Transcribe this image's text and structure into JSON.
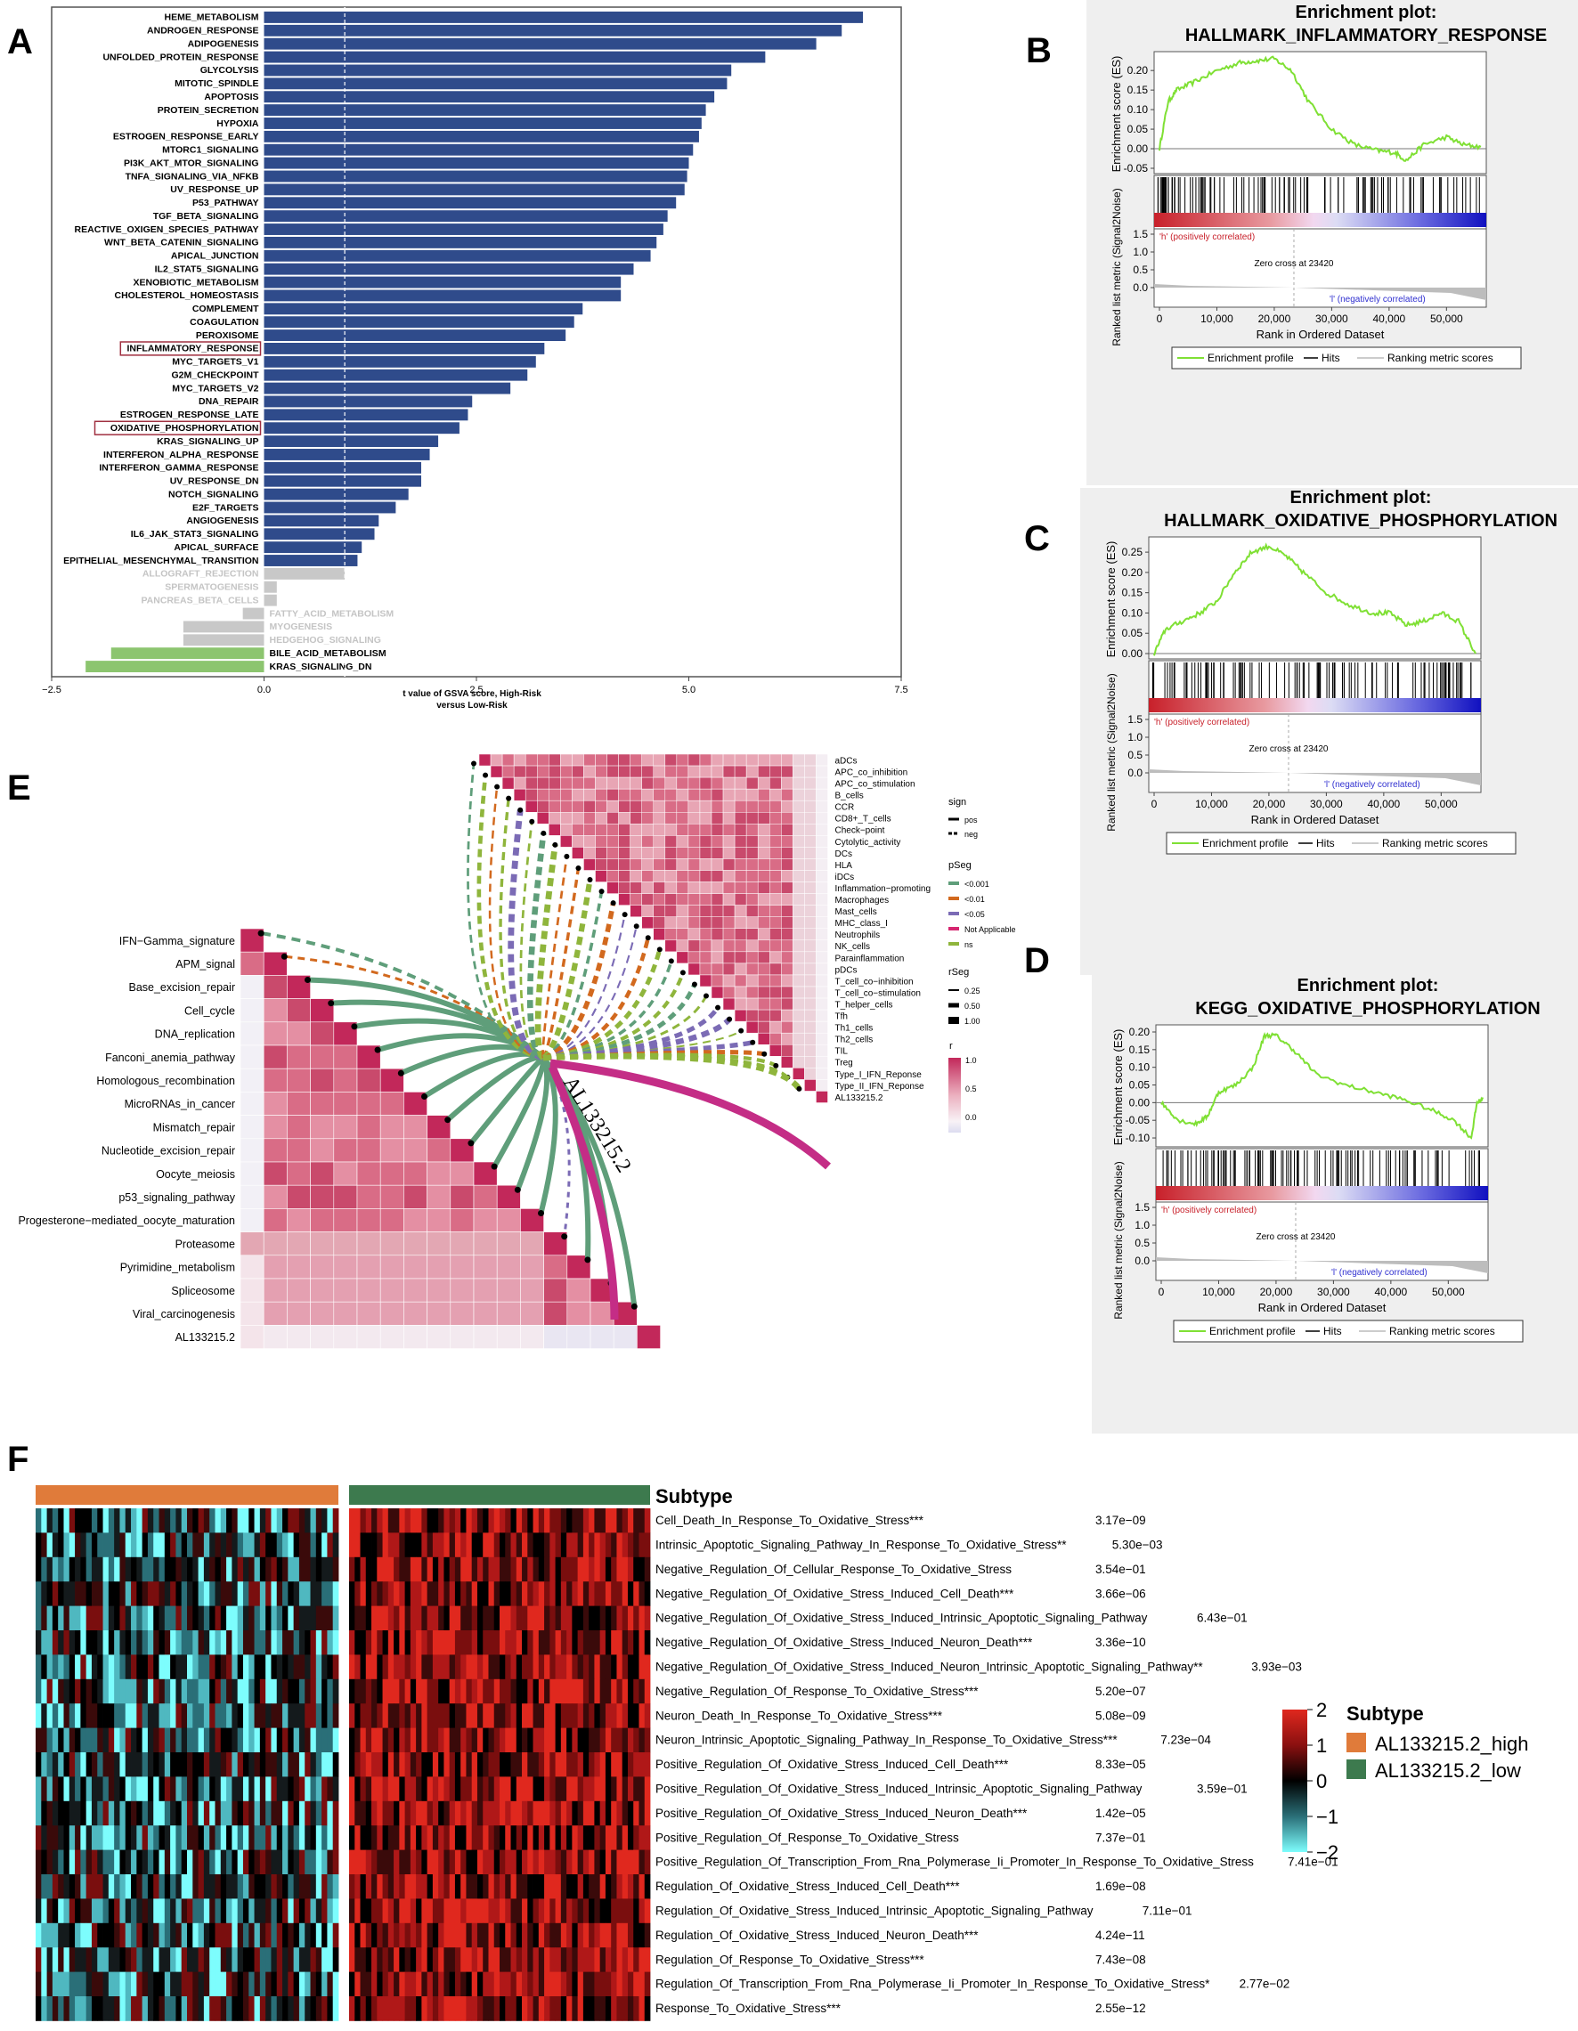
{
  "panels": {
    "A": "A",
    "B": "B",
    "C": "C",
    "D": "D",
    "E": "E",
    "F": "F"
  },
  "colors": {
    "up": "#2f4b8b",
    "ns": "#c8c8c8",
    "down": "#8cc56f",
    "es": "#7fe034",
    "hm_high": "#e07b3a",
    "hm_low": "#3d7a4e",
    "mat": "#c8466a",
    "green": "#5f9e7a",
    "magenta": "#c42d86"
  },
  "chart_data": [
    {
      "type": "bar",
      "id": "gsva",
      "xlabel": "t value of GSVA score, High-Risk versus Low-Risk",
      "xlabel_line1": "t value of GSVA score, High-Risk",
      "xlabel_line2": "versus Low-Risk",
      "xlim": [
        -2.5,
        7.5
      ],
      "xticks": [
        "−2.5",
        "0.0",
        "2.5",
        "5.0",
        "7.5"
      ],
      "xtick_values": [
        -2.5,
        0,
        2.5,
        5.0,
        7.5
      ],
      "highlighted": [
        "INFLAMMATORY_RESPONSE",
        "OXIDATIVE_PHOSPHORYLATION"
      ],
      "categories": [
        "HEME_METABOLISM",
        "ANDROGEN_RESPONSE",
        "ADIPOGENESIS",
        "UNFOLDED_PROTEIN_RESPONSE",
        "GLYCOLYSIS",
        "MITOTIC_SPINDLE",
        "APOPTOSIS",
        "PROTEIN_SECRETION",
        "HYPOXIA",
        "ESTROGEN_RESPONSE_EARLY",
        "MTORC1_SIGNALING",
        "PI3K_AKT_MTOR_SIGNALING",
        "TNFA_SIGNALING_VIA_NFKB",
        "UV_RESPONSE_UP",
        "P53_PATHWAY",
        "TGF_BETA_SIGNALING",
        "REACTIVE_OXIGEN_SPECIES_PATHWAY",
        "WNT_BETA_CATENIN_SIGNALING",
        "APICAL_JUNCTION",
        "IL2_STAT5_SIGNALING",
        "XENOBIOTIC_METABOLISM",
        "CHOLESTEROL_HOMEOSTASIS",
        "COMPLEMENT",
        "COAGULATION",
        "PEROXISOME",
        "INFLAMMATORY_RESPONSE",
        "MYC_TARGETS_V1",
        "G2M_CHECKPOINT",
        "MYC_TARGETS_V2",
        "DNA_REPAIR",
        "ESTROGEN_RESPONSE_LATE",
        "OXIDATIVE_PHOSPHORYLATION",
        "KRAS_SIGNALING_UP",
        "INTERFERON_ALPHA_RESPONSE",
        "INTERFERON_GAMMA_RESPONSE",
        "UV_RESPONSE_DN",
        "NOTCH_SIGNALING",
        "E2F_TARGETS",
        "ANGIOGENESIS",
        "IL6_JAK_STAT3_SIGNALING",
        "APICAL_SURFACE",
        "EPITHELIAL_MESENCHYMAL_TRANSITION",
        "ALLOGRAFT_REJECTION",
        "SPERMATOGENESIS",
        "PANCREAS_BETA_CELLS",
        "FATTY_ACID_METABOLISM",
        "MYOGENESIS",
        "HEDGEHOG_SIGNALING",
        "BILE_ACID_METABOLISM",
        "KRAS_SIGNALING_DN"
      ],
      "values": [
        7.05,
        6.8,
        6.5,
        5.9,
        5.5,
        5.45,
        5.3,
        5.2,
        5.15,
        5.12,
        5.05,
        5.0,
        4.98,
        4.95,
        4.85,
        4.75,
        4.7,
        4.62,
        4.55,
        4.35,
        4.2,
        4.2,
        3.75,
        3.65,
        3.55,
        3.3,
        3.2,
        3.1,
        2.9,
        2.45,
        2.4,
        2.3,
        2.05,
        1.95,
        1.85,
        1.85,
        1.7,
        1.55,
        1.35,
        1.3,
        1.15,
        1.1,
        0.95,
        0.15,
        0.15,
        -0.25,
        -0.95,
        -0.95,
        -1.8,
        -2.1
      ],
      "groups": [
        "up",
        "up",
        "up",
        "up",
        "up",
        "up",
        "up",
        "up",
        "up",
        "up",
        "up",
        "up",
        "up",
        "up",
        "up",
        "up",
        "up",
        "up",
        "up",
        "up",
        "up",
        "up",
        "up",
        "up",
        "up",
        "up",
        "up",
        "up",
        "up",
        "up",
        "up",
        "up",
        "up",
        "up",
        "up",
        "up",
        "up",
        "up",
        "up",
        "up",
        "up",
        "up",
        "ns",
        "ns",
        "ns",
        "ns",
        "ns",
        "ns",
        "down",
        "down"
      ]
    },
    {
      "type": "line",
      "id": "gsea_inflam",
      "title_line1": "Enrichment plot:",
      "title_line2": "HALLMARK_INFLAMMATORY_RESPONSE",
      "ylabel_es": "Enrichment score (ES)",
      "ylabel_rank": "Ranked list metric (Signal2Noise)",
      "xlabel": "Rank in Ordered Dataset",
      "es_ticks": [
        "0.20",
        "0.15",
        "0.10",
        "0.05",
        "0.00",
        "-0.05"
      ],
      "es_ylim": [
        -0.05,
        0.23
      ],
      "rank_ticks": [
        "1.5",
        "1.0",
        "0.5",
        "0.0"
      ],
      "x_ticks": [
        "0",
        "10,000",
        "20,000",
        "30,000",
        "40,000",
        "50,000"
      ],
      "zero_cross": "Zero cross at 23420",
      "pos_label": "'h' (positively correlated)",
      "neg_label": "'l' (negatively correlated)",
      "legend": [
        "Enrichment profile",
        "Hits",
        "Ranking metric scores"
      ],
      "x": [
        0,
        1500,
        3000,
        6000,
        10000,
        14000,
        17000,
        20000,
        23000,
        26000,
        30000,
        34000,
        38000,
        41000,
        43000,
        46000,
        50000,
        53000,
        56000
      ],
      "es": [
        0.0,
        0.12,
        0.15,
        0.17,
        0.2,
        0.22,
        0.225,
        0.23,
        0.2,
        0.12,
        0.05,
        0.01,
        -0.005,
        -0.01,
        -0.03,
        0.01,
        0.03,
        0.01,
        0.005
      ]
    },
    {
      "type": "line",
      "id": "gsea_oxphos_h",
      "title_line1": "Enrichment plot:",
      "title_line2": "HALLMARK_OXIDATIVE_PHOSPHORYLATION",
      "ylabel_es": "Enrichment score (ES)",
      "ylabel_rank": "Ranked list metric (Signal2Noise)",
      "xlabel": "Rank in Ordered Dataset",
      "es_ticks": [
        "0.25",
        "0.20",
        "0.15",
        "0.10",
        "0.05",
        "0.00"
      ],
      "es_ylim": [
        0.0,
        0.27
      ],
      "rank_ticks": [
        "1.5",
        "1.0",
        "0.5",
        "0.0"
      ],
      "x_ticks": [
        "0",
        "10,000",
        "20,000",
        "30,000",
        "40,000",
        "50,000"
      ],
      "zero_cross": "Zero cross at 23420",
      "pos_label": "'h' (positively correlated)",
      "neg_label": "'l' (negatively correlated)",
      "legend": [
        "Enrichment profile",
        "Hits",
        "Ranking metric scores"
      ],
      "x": [
        0,
        2000,
        5000,
        8000,
        11000,
        14000,
        17000,
        20000,
        23000,
        26000,
        30000,
        34000,
        38000,
        41000,
        44000,
        47000,
        50000,
        53000,
        56000
      ],
      "es": [
        0.0,
        0.06,
        0.08,
        0.1,
        0.13,
        0.2,
        0.25,
        0.265,
        0.24,
        0.2,
        0.15,
        0.12,
        0.1,
        0.1,
        0.07,
        0.08,
        0.1,
        0.08,
        0.0
      ]
    },
    {
      "type": "line",
      "id": "gsea_oxphos_k",
      "title_line1": "Enrichment plot:",
      "title_line2": "KEGG_OXIDATIVE_PHOSPHORYLATION",
      "ylabel_es": "Enrichment score (ES)",
      "ylabel_rank": "Ranked list metric (Signal2Noise)",
      "xlabel": "Rank in Ordered Dataset",
      "es_ticks": [
        "0.20",
        "0.15",
        "0.10",
        "0.05",
        "0.00",
        "-0.05",
        "-0.10"
      ],
      "es_ylim": [
        -0.11,
        0.2
      ],
      "rank_ticks": [
        "1.5",
        "1.0",
        "0.5",
        "0.0"
      ],
      "x_ticks": [
        "0",
        "10,000",
        "20,000",
        "30,000",
        "40,000",
        "50,000"
      ],
      "zero_cross": "Zero cross at 23420",
      "pos_label": "'h' (positively correlated)",
      "neg_label": "'l' (negatively correlated)",
      "legend": [
        "Enrichment profile",
        "Hits",
        "Ranking metric scores"
      ],
      "x": [
        0,
        3000,
        6000,
        8000,
        10000,
        13000,
        16000,
        18000,
        20000,
        23000,
        27000,
        32000,
        37000,
        42000,
        47000,
        51000,
        54000,
        55000,
        56000
      ],
      "es": [
        0.0,
        -0.05,
        -0.06,
        -0.04,
        0.03,
        0.05,
        0.1,
        0.19,
        0.19,
        0.15,
        0.08,
        0.05,
        0.03,
        0.01,
        -0.02,
        -0.05,
        -0.1,
        0.0,
        0.01
      ]
    },
    {
      "type": "heatmap",
      "id": "corr_network",
      "gene": "AL133215.2",
      "left_labels": [
        "IFN−Gamma_signature",
        "APM_signal",
        "Base_excision_repair",
        "Cell_cycle",
        "DNA_replication",
        "Fanconi_anemia_pathway",
        "Homologous_recombination",
        "MicroRNAs_in_cancer",
        "Mismatch_repair",
        "Nucleotide_excision_repair",
        "Oocyte_meiosis",
        "p53_signaling_pathway",
        "Progesterone−mediated_oocyte_maturation",
        "Proteasome",
        "Pyrimidine_metabolism",
        "Spliceosome",
        "Viral_carcinogenesis",
        "AL133215.2"
      ],
      "right_labels": [
        "aDCs",
        "APC_co_inhibition",
        "APC_co_stimulation",
        "B_cells",
        "CCR",
        "CD8+_T_cells",
        "Check−point",
        "Cytolytic_activity",
        "DCs",
        "HLA",
        "iDCs",
        "Inflammation−promoting",
        "Macrophages",
        "Mast_cells",
        "MHC_class_I",
        "Neutrophils",
        "NK_cells",
        "Parainflammation",
        "pDCs",
        "T_cell_co−inhibition",
        "T_cell_co−stimulation",
        "T_helper_cells",
        "Tfh",
        "Th1_cells",
        "Th2_cells",
        "TIL",
        "Treg",
        "Type_I_IFN_Reponse",
        "Type_II_IFN_Reponse",
        "AL133215.2"
      ],
      "legend": {
        "sign_title": "sign",
        "sign_items": [
          "pos",
          "neg"
        ],
        "pseg_title": "pSeg",
        "pseg_items": [
          "<0.001",
          "<0.01",
          "<0.05",
          "Not Applicable",
          "ns"
        ],
        "pseg_colors": [
          "#5f9e7a",
          "#d2691e",
          "#7b6bb5",
          "#d62670",
          "#8fb53c"
        ],
        "rseg_title": "rSeg",
        "rseg_items": [
          "0.25",
          "0.50",
          "1.00"
        ],
        "r_title": "r",
        "r_ticks": [
          "1.0",
          "0.5",
          "0.0"
        ]
      }
    },
    {
      "type": "heatmap",
      "id": "subtype_heatmap",
      "annotation_title": "Subtype",
      "legend_title": "Subtype",
      "groups": [
        "AL133215.2_high",
        "AL133215.2_low"
      ],
      "scale_ticks": [
        "2",
        "1",
        "0",
        "−1",
        "−2"
      ],
      "rows": [
        {
          "name": "Cell_Death_In_Response_To_Oxidative_Stress***",
          "p": "3.17e−09"
        },
        {
          "name": "Intrinsic_Apoptotic_Signaling_Pathway_In_Response_To_Oxidative_Stress**",
          "p": "5.30e−03"
        },
        {
          "name": "Negative_Regulation_Of_Cellular_Response_To_Oxidative_Stress",
          "p": "3.54e−01"
        },
        {
          "name": "Negative_Regulation_Of_Oxidative_Stress_Induced_Cell_Death***",
          "p": "3.66e−06"
        },
        {
          "name": "Negative_Regulation_Of_Oxidative_Stress_Induced_Intrinsic_Apoptotic_Signaling_Pathway",
          "p": "6.43e−01"
        },
        {
          "name": "Negative_Regulation_Of_Oxidative_Stress_Induced_Neuron_Death***",
          "p": "3.36e−10"
        },
        {
          "name": "Negative_Regulation_Of_Oxidative_Stress_Induced_Neuron_Intrinsic_Apoptotic_Signaling_Pathway**",
          "p": "3.93e−03"
        },
        {
          "name": "Negative_Regulation_Of_Response_To_Oxidative_Stress***",
          "p": "5.20e−07"
        },
        {
          "name": "Neuron_Death_In_Response_To_Oxidative_Stress***",
          "p": "5.08e−09"
        },
        {
          "name": "Neuron_Intrinsic_Apoptotic_Signaling_Pathway_In_Response_To_Oxidative_Stress***",
          "p": "7.23e−04"
        },
        {
          "name": "Positive_Regulation_Of_Oxidative_Stress_Induced_Cell_Death***",
          "p": "8.33e−05"
        },
        {
          "name": "Positive_Regulation_Of_Oxidative_Stress_Induced_Intrinsic_Apoptotic_Signaling_Pathway",
          "p": "3.59e−01"
        },
        {
          "name": "Positive_Regulation_Of_Oxidative_Stress_Induced_Neuron_Death***",
          "p": "1.42e−05"
        },
        {
          "name": "Positive_Regulation_Of_Response_To_Oxidative_Stress",
          "p": "7.37e−01"
        },
        {
          "name": "Positive_Regulation_Of_Transcription_From_Rna_Polymerase_Ii_Promoter_In_Response_To_Oxidative_Stress",
          "p": "7.41e−01"
        },
        {
          "name": "Regulation_Of_Oxidative_Stress_Induced_Cell_Death***",
          "p": "1.69e−08"
        },
        {
          "name": "Regulation_Of_Oxidative_Stress_Induced_Intrinsic_Apoptotic_Signaling_Pathway",
          "p": "7.11e−01"
        },
        {
          "name": "Regulation_Of_Oxidative_Stress_Induced_Neuron_Death***",
          "p": "4.24e−11"
        },
        {
          "name": "Regulation_Of_Response_To_Oxidative_Stress***",
          "p": "7.43e−08"
        },
        {
          "name": "Regulation_Of_Transcription_From_Rna_Polymerase_Ii_Promoter_In_Response_To_Oxidative_Stress*",
          "p": "2.77e−02"
        },
        {
          "name": "Response_To_Oxidative_Stress***",
          "p": "2.55e−12"
        }
      ]
    }
  ]
}
